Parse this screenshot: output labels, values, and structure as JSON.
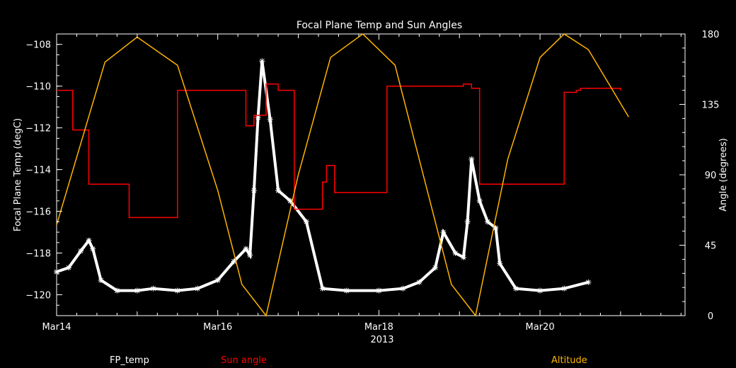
{
  "chart_data": {
    "type": "line",
    "title": "Focal Plane Temp and Sun Angles",
    "xlabel": "2013",
    "ylabel_left": "Focal Plane Temp (degC)",
    "ylabel_right": "Angle (degrees)",
    "xlim": [
      14.0,
      21.8
    ],
    "ylim_left": [
      -121.0,
      -107.5
    ],
    "ylim_right": [
      0,
      180
    ],
    "x_ticks": [
      {
        "value": 14,
        "label": "Mar14"
      },
      {
        "value": 16,
        "label": "Mar16"
      },
      {
        "value": 18,
        "label": "Mar18"
      },
      {
        "value": 20,
        "label": "Mar20"
      }
    ],
    "y_ticks_left": [
      {
        "value": -120,
        "label": "−120"
      },
      {
        "value": -118,
        "label": "−118"
      },
      {
        "value": -116,
        "label": "−116"
      },
      {
        "value": -114,
        "label": "−114"
      },
      {
        "value": -112,
        "label": "−112"
      },
      {
        "value": -110,
        "label": "−110"
      },
      {
        "value": -108,
        "label": "−108"
      }
    ],
    "y_ticks_right": [
      {
        "value": 0,
        "label": "0"
      },
      {
        "value": 45,
        "label": "45"
      },
      {
        "value": 90,
        "label": "90"
      },
      {
        "value": 135,
        "label": "135"
      },
      {
        "value": 180,
        "label": "180"
      }
    ],
    "series": [
      {
        "name": "FP_temp",
        "axis": "left",
        "color": "#ffffff",
        "marker": "asterisk",
        "x": [
          14.0,
          14.15,
          14.3,
          14.4,
          14.45,
          14.55,
          14.75,
          15.0,
          15.2,
          15.5,
          15.75,
          16.0,
          16.2,
          16.35,
          16.4,
          16.45,
          16.5,
          16.55,
          16.65,
          16.75,
          16.9,
          17.1,
          17.3,
          17.6,
          18.0,
          18.3,
          18.5,
          18.7,
          18.8,
          18.95,
          19.05,
          19.1,
          19.15,
          19.25,
          19.35,
          19.45,
          19.5,
          19.7,
          20.0,
          20.3,
          20.6
        ],
        "y": [
          -118.9,
          -118.7,
          -117.9,
          -117.4,
          -117.8,
          -119.3,
          -119.8,
          -119.8,
          -119.7,
          -119.8,
          -119.7,
          -119.3,
          -118.4,
          -117.8,
          -118.1,
          -115.0,
          -111.5,
          -108.8,
          -111.6,
          -115.0,
          -115.5,
          -116.5,
          -119.7,
          -119.8,
          -119.8,
          -119.7,
          -119.4,
          -118.7,
          -117.0,
          -118.0,
          -118.2,
          -116.5,
          -113.5,
          -115.5,
          -116.5,
          -116.8,
          -118.5,
          -119.7,
          -119.8,
          -119.7,
          -119.4
        ]
      },
      {
        "name": "Sun angle",
        "axis": "left",
        "color": "#ff0000",
        "step": true,
        "x": [
          14.0,
          14.2,
          14.4,
          14.6,
          14.9,
          15.5,
          15.8,
          16.3,
          16.35,
          16.45,
          16.6,
          16.75,
          16.8,
          16.95,
          17.3,
          17.35,
          17.45,
          18.1,
          18.6,
          19.05,
          19.15,
          19.25,
          20.3,
          20.45,
          20.5,
          21.0
        ],
        "y": [
          -110.2,
          -112.1,
          -114.7,
          -114.7,
          -116.3,
          -110.2,
          -110.2,
          -110.2,
          -111.9,
          -111.4,
          -109.9,
          -110.2,
          -110.2,
          -115.9,
          -114.6,
          -113.8,
          -115.1,
          -110.0,
          -110.0,
          -109.9,
          -110.1,
          -114.7,
          -110.3,
          -110.2,
          -110.1,
          -110.2
        ]
      },
      {
        "name": "Altitude",
        "axis": "right",
        "color": "#ffb400",
        "x": [
          14.0,
          14.6,
          15.0,
          15.5,
          16.0,
          16.3,
          16.6,
          17.0,
          17.4,
          17.8,
          18.2,
          18.6,
          18.9,
          19.2,
          19.6,
          20.0,
          20.3,
          20.6,
          21.1
        ],
        "y": [
          58.0,
          162.0,
          178.0,
          160.0,
          80.0,
          20.0,
          0.0,
          90.0,
          165.0,
          180.0,
          160.0,
          80.0,
          20.0,
          0.0,
          100.0,
          165.0,
          180.0,
          170.0,
          127.0
        ]
      }
    ]
  }
}
